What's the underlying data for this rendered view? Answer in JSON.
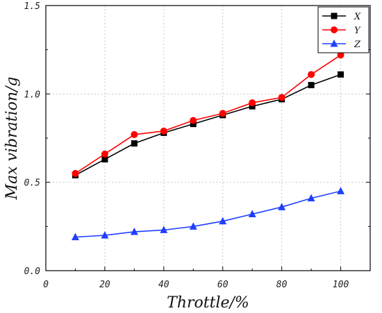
{
  "chart_data": {
    "type": "line",
    "xlabel": "Throttle/%",
    "ylabel": "Max vibration/g",
    "xlim": [
      0,
      110
    ],
    "ylim": [
      0,
      1.5
    ],
    "xticks": [
      0,
      20,
      40,
      60,
      80,
      100
    ],
    "xtick_labels": [
      "0",
      "20",
      "40",
      "60",
      "80",
      "100"
    ],
    "yticks": [
      0,
      0.5,
      1.0,
      1.5
    ],
    "ytick_labels": [
      "0.0",
      "0.5",
      "1.0",
      "1.5"
    ],
    "grid": true,
    "legend_position": "top-right",
    "x": [
      10,
      20,
      30,
      40,
      50,
      60,
      70,
      80,
      90,
      100
    ],
    "series": [
      {
        "name": "X",
        "color": "#000000",
        "marker": "square",
        "values": [
          0.54,
          0.63,
          0.72,
          0.78,
          0.83,
          0.88,
          0.93,
          0.97,
          1.05,
          1.11
        ]
      },
      {
        "name": "Y",
        "color": "#ff0000",
        "marker": "circle",
        "values": [
          0.55,
          0.66,
          0.77,
          0.79,
          0.85,
          0.89,
          0.95,
          0.98,
          1.11,
          1.22
        ]
      },
      {
        "name": "Z",
        "color": "#1f3fff",
        "marker": "triangle",
        "values": [
          0.19,
          0.2,
          0.22,
          0.23,
          0.25,
          0.28,
          0.32,
          0.36,
          0.41,
          0.45
        ]
      }
    ]
  }
}
